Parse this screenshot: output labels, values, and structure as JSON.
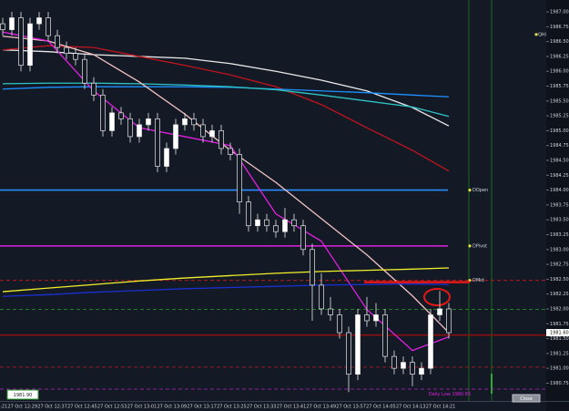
{
  "chart_data": {
    "type": "candlestick",
    "open": [
      1986.8,
      1986.7,
      1986.9,
      1986.1,
      1986.8,
      1986.9,
      1986.6,
      1986.4,
      1986.3,
      1986.2,
      1985.8,
      1985.6,
      1985.0,
      1985.3,
      1985.2,
      1984.9,
      1985.1,
      1985.2,
      1984.4,
      1984.7,
      1985.1,
      1985.2,
      1985.1,
      1984.9,
      1985.0,
      1984.7,
      1984.6,
      1983.8,
      1983.4,
      1983.5,
      1983.4,
      1983.3,
      1983.5,
      1983.4,
      1983.0,
      1982.4,
      1982.0,
      1981.9,
      1981.6,
      1980.9,
      1981.9,
      1981.8,
      1981.9,
      1981.2,
      1981.0,
      1981.1,
      1980.9,
      1981.0,
      1981.9,
      1982.0
    ],
    "high": [
      1986.9,
      1987.0,
      1987.0,
      1986.9,
      1987.0,
      1987.0,
      1986.7,
      1986.5,
      1986.4,
      1986.3,
      1985.9,
      1985.7,
      1985.4,
      1985.4,
      1985.3,
      1985.2,
      1985.3,
      1985.3,
      1984.8,
      1985.2,
      1985.3,
      1985.3,
      1985.2,
      1985.1,
      1985.1,
      1984.8,
      1984.7,
      1983.9,
      1983.6,
      1983.6,
      1983.5,
      1983.7,
      1983.6,
      1983.5,
      1983.1,
      1982.6,
      1982.2,
      1982.0,
      1981.7,
      1982.0,
      1982.2,
      1982.1,
      1982.0,
      1981.3,
      1981.2,
      1981.2,
      1981.1,
      1982.0,
      1982.3,
      1982.1
    ],
    "low": [
      1986.6,
      1986.6,
      1986.0,
      1986.0,
      1986.7,
      1986.5,
      1986.3,
      1986.2,
      1986.1,
      1985.7,
      1985.5,
      1984.9,
      1984.9,
      1985.1,
      1984.8,
      1984.8,
      1985.0,
      1984.3,
      1984.3,
      1984.6,
      1985.0,
      1985.0,
      1984.8,
      1984.8,
      1984.6,
      1984.5,
      1983.6,
      1983.3,
      1983.3,
      1983.3,
      1983.2,
      1983.2,
      1983.3,
      1982.9,
      1981.8,
      1981.9,
      1981.8,
      1981.5,
      1980.6,
      1980.8,
      1981.7,
      1981.7,
      1981.1,
      1980.9,
      1980.9,
      1980.7,
      1980.8,
      1980.9,
      1981.8,
      1981.5
    ],
    "close": [
      1986.7,
      1986.9,
      1986.1,
      1986.8,
      1986.9,
      1986.6,
      1986.4,
      1986.3,
      1986.2,
      1985.8,
      1985.6,
      1985.0,
      1985.3,
      1985.2,
      1984.9,
      1985.1,
      1985.2,
      1984.4,
      1984.7,
      1985.1,
      1985.2,
      1985.1,
      1984.9,
      1985.0,
      1984.7,
      1984.6,
      1983.8,
      1983.4,
      1983.5,
      1983.4,
      1983.3,
      1983.5,
      1983.4,
      1983.0,
      1982.4,
      1982.0,
      1981.9,
      1981.6,
      1980.9,
      1981.9,
      1981.8,
      1981.9,
      1981.2,
      1981.0,
      1981.1,
      1980.9,
      1981.0,
      1981.9,
      1982.0,
      1981.6
    ],
    "overlay_x": [
      0,
      5,
      10,
      15,
      20,
      25,
      30,
      35,
      40,
      45,
      49
    ],
    "overlays": [
      {
        "color": "#e8e8e8",
        "values": [
          1986.36,
          1986.33,
          1986.28,
          1986.25,
          1986.22,
          1986.13,
          1986.0,
          1985.85,
          1985.67,
          1985.39,
          1985.08
        ]
      },
      {
        "color": "#c0141c",
        "values": [
          1986.36,
          1986.43,
          1986.4,
          1986.25,
          1986.1,
          1985.94,
          1985.74,
          1985.44,
          1985.05,
          1984.67,
          1984.32
        ]
      },
      {
        "color": "#1e90ff",
        "values": [
          1985.7,
          1985.73,
          1985.74,
          1985.74,
          1985.74,
          1985.73,
          1985.7,
          1985.67,
          1985.64,
          1985.6,
          1985.57
        ]
      },
      {
        "color": "#2ec4c4",
        "values": [
          1985.79,
          1985.8,
          1985.8,
          1985.79,
          1985.77,
          1985.74,
          1985.69,
          1985.6,
          1985.5,
          1985.4,
          1985.24
        ]
      },
      {
        "color": "#f4c2c2",
        "values": [
          1986.59,
          1986.51,
          1986.28,
          1985.82,
          1985.28,
          1984.67,
          1984.13,
          1983.52,
          1982.91,
          1982.22,
          1981.6
        ]
      },
      {
        "color": "#e020e0",
        "values": [
          1986.66,
          1986.51,
          1985.67,
          1985.05,
          1984.9,
          1984.75,
          1983.6,
          1983.14,
          1981.99,
          1981.3,
          1981.53
        ]
      },
      {
        "color": "#f2ee2a",
        "values": [
          1982.29,
          1982.35,
          1982.41,
          1982.47,
          1982.52,
          1982.56,
          1982.6,
          1982.63,
          1982.65,
          1982.67,
          1982.69
        ]
      },
      {
        "color": "#1b2fd0",
        "values": [
          1982.21,
          1982.24,
          1982.28,
          1982.31,
          1982.34,
          1982.36,
          1982.38,
          1982.4,
          1982.41,
          1982.42,
          1982.41
        ]
      }
    ],
    "levels": [
      {
        "value": 1984.0,
        "color": "#2a8cff",
        "label": "DOpen"
      },
      {
        "value": 1983.06,
        "color": "#e020e0",
        "label": "DPivot"
      },
      {
        "value": 1982.48,
        "color": "#d01818",
        "label": "DMid",
        "dash": true
      },
      {
        "value": 1981.99,
        "color": "#2aa02a",
        "dash": true
      },
      {
        "value": 1981.56,
        "color": "#8a1010"
      },
      {
        "value": 1981.02,
        "color": "#c01818",
        "dash": true
      },
      {
        "value": 1980.65,
        "color": "#c020c0",
        "dash": true
      }
    ],
    "qhi": {
      "label": "QHi",
      "value": 1986.62
    },
    "marker_line": {
      "value": 1982.45,
      "color": "#e21818"
    },
    "price_tag": {
      "value": 1981.6,
      "label": "1981.60"
    },
    "daily_low_label": "Daily Low 1980.65",
    "bid_box": "1981.90",
    "close_button": "Close",
    "ylim": [
      1980.45,
      1987.2
    ],
    "yticks": [
      {
        "value": 1987,
        "label": "1987.00"
      },
      {
        "value": 1986.75,
        "label": "1986.75"
      },
      {
        "value": 1986.5,
        "label": "1986.50"
      },
      {
        "value": 1986.25,
        "label": "1986.25"
      },
      {
        "value": 1986,
        "label": "1986.00"
      },
      {
        "value": 1985.75,
        "label": "1985.75"
      },
      {
        "value": 1985.5,
        "label": "1985.50"
      },
      {
        "value": 1985.25,
        "label": "1985.25"
      },
      {
        "value": 1985,
        "label": "1985.00"
      },
      {
        "value": 1984.75,
        "label": "1984.75"
      },
      {
        "value": 1984.5,
        "label": "1984.50"
      },
      {
        "value": 1984.25,
        "label": "1984.25"
      },
      {
        "value": 1984,
        "label": "1984.00"
      },
      {
        "value": 1983.75,
        "label": "1983.75"
      },
      {
        "value": 1983.5,
        "label": "1983.50"
      },
      {
        "value": 1983.25,
        "label": "1983.25"
      },
      {
        "value": 1983,
        "label": "1983.00"
      },
      {
        "value": 1982.75,
        "label": "1982.75"
      },
      {
        "value": 1982.5,
        "label": "1982.50"
      },
      {
        "value": 1982.25,
        "label": "1982.25"
      },
      {
        "value": 1982,
        "label": "1982.00"
      },
      {
        "value": 1981.75,
        "label": "1981.75"
      },
      {
        "value": 1981.5,
        "label": "1981.50"
      },
      {
        "value": 1981.25,
        "label": "1981.25"
      },
      {
        "value": 1981,
        "label": "1981.00"
      },
      {
        "value": 1980.75,
        "label": "1980.75"
      }
    ],
    "xtick_labels": [
      "27 Oct 12:21",
      "27 Oct 12:29",
      "27 Oct 12:37",
      "27 Oct 12:45",
      "27 Oct 12:53",
      "27 Oct 13:01",
      "27 Oct 13:09",
      "27 Oct 13:17",
      "27 Oct 13:25",
      "27 Oct 13:33",
      "27 Oct 13:41",
      "27 Oct 13:49",
      "27 Oct 13:57",
      "27 Oct 14:05",
      "27 Oct 14:13",
      "27 Oct 14:21"
    ]
  }
}
